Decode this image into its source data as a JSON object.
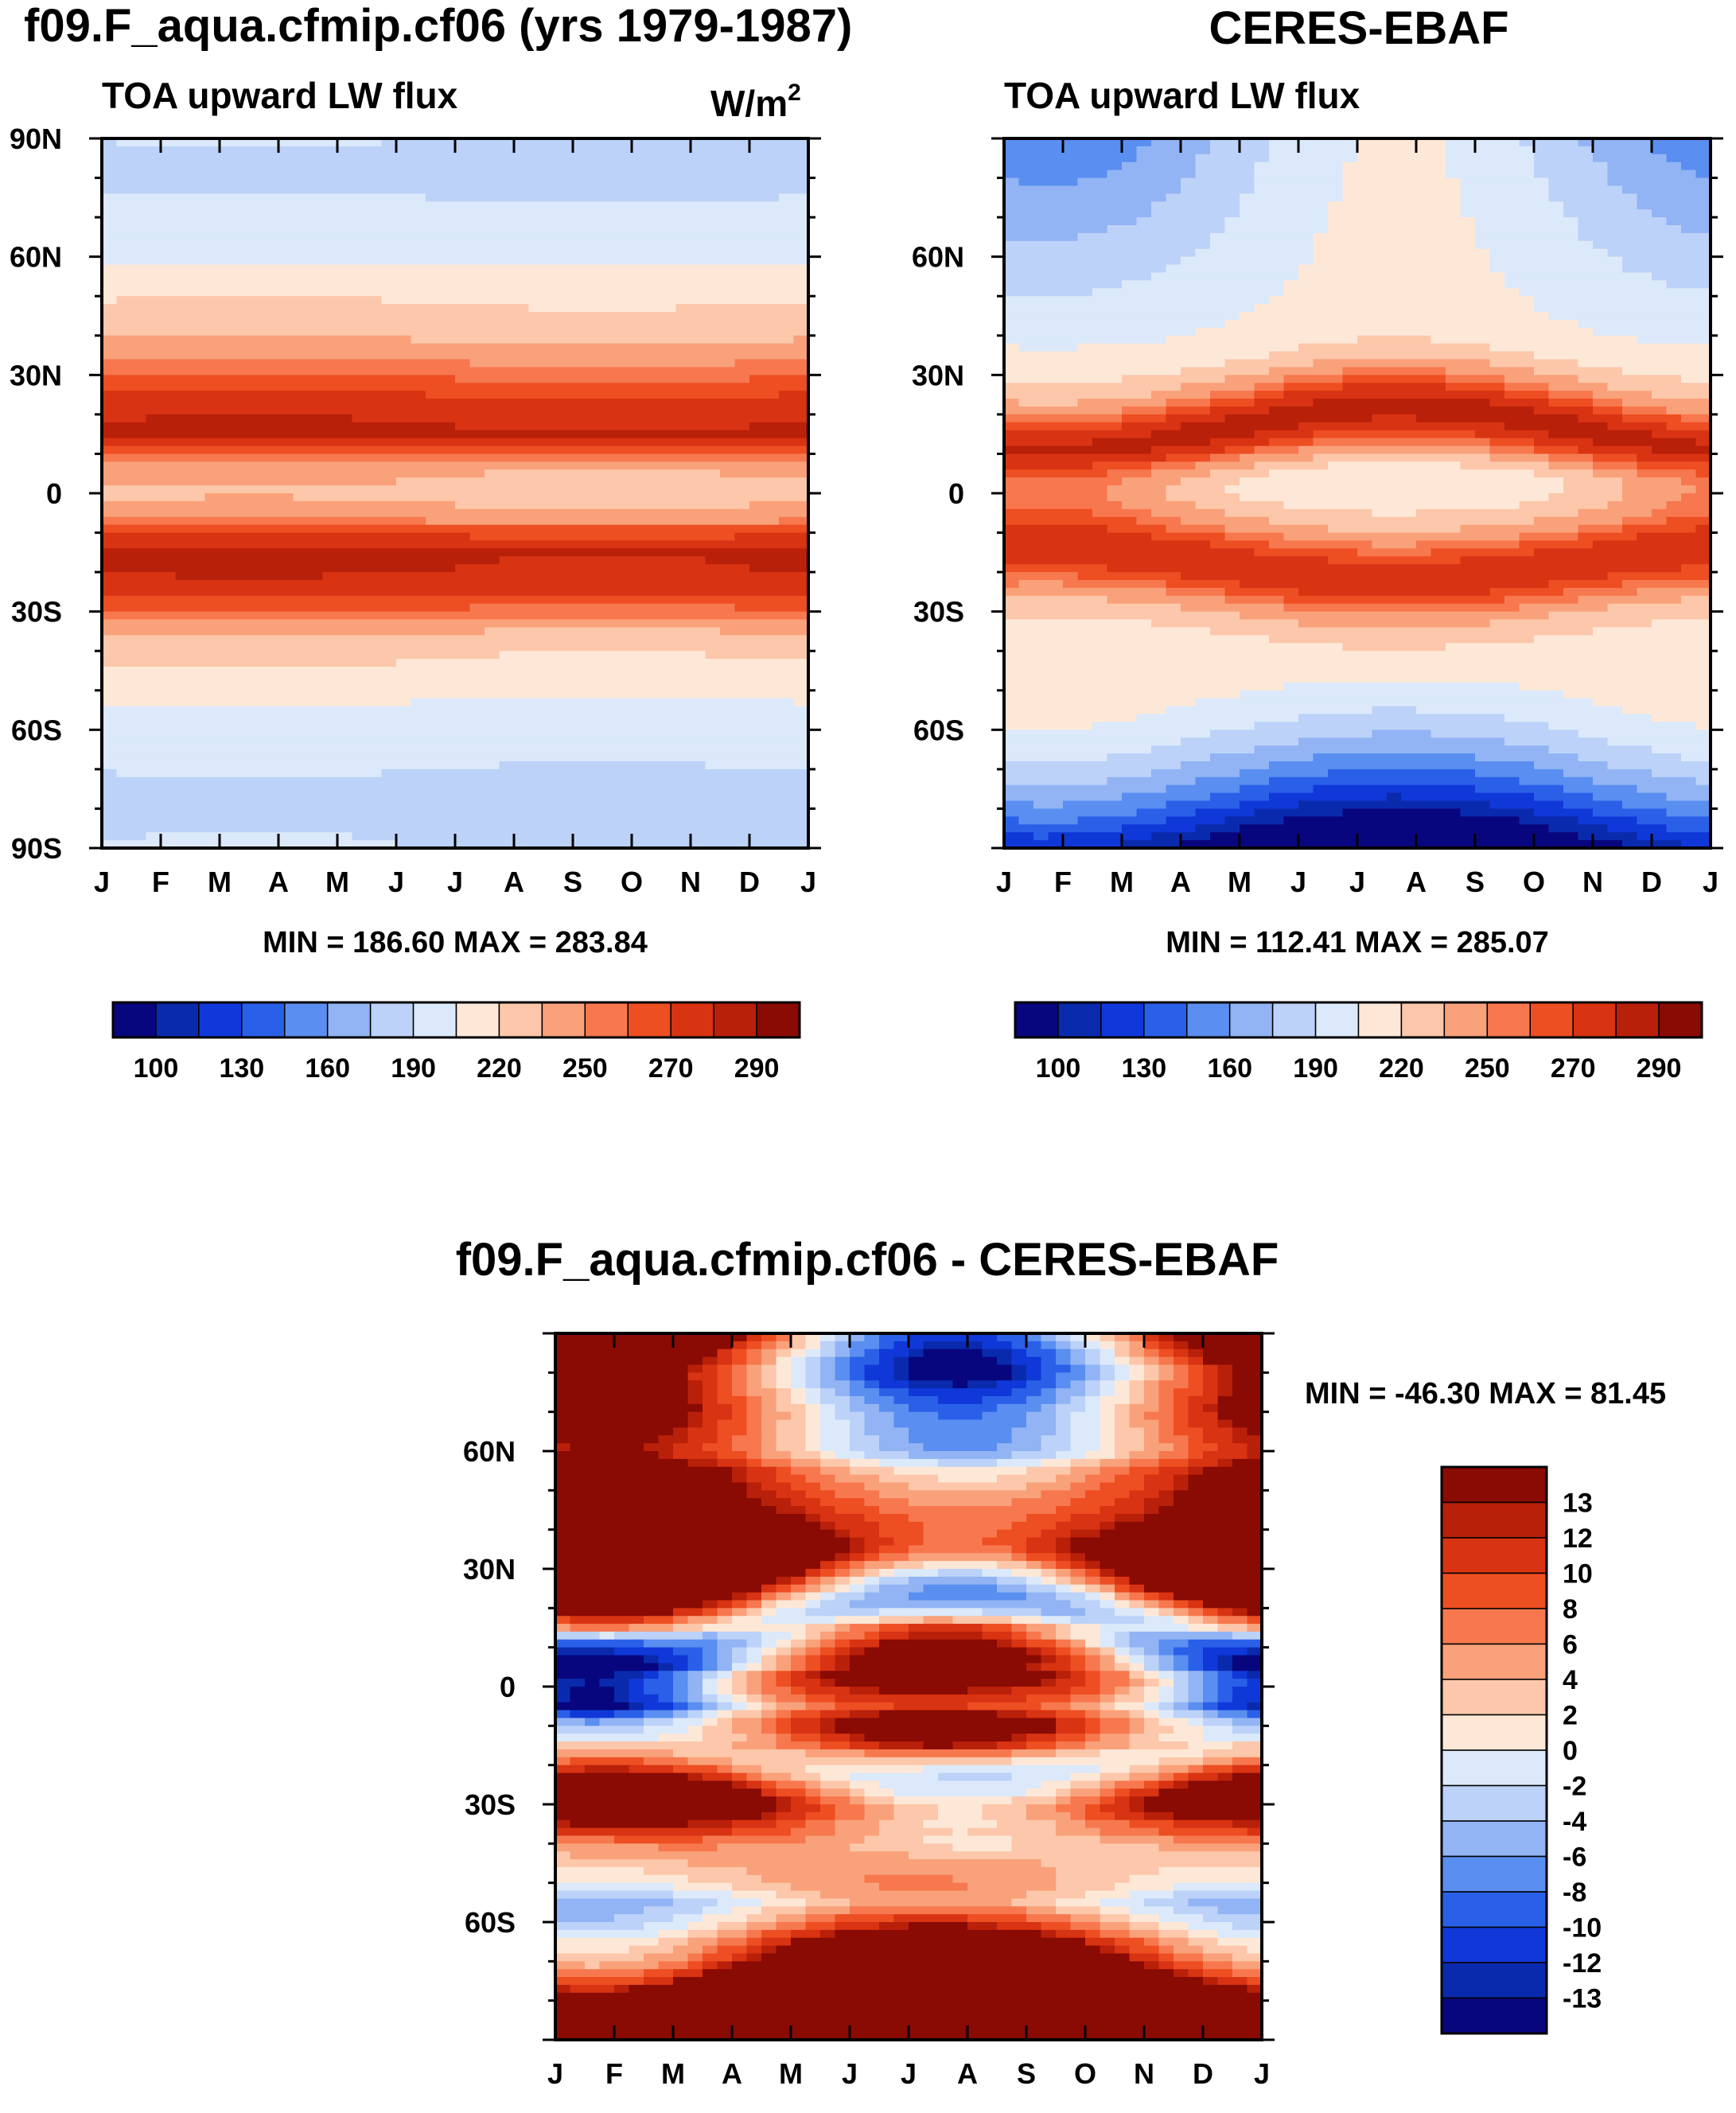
{
  "chart_data": [
    {
      "type": "heatmap",
      "title": "f09.F_aqua.cfmip.cf06 (yrs 1979-1987)",
      "subtitle": "TOA upward LW flux",
      "units": "W/m",
      "units_sup": "2",
      "x_tick_labels": [
        "J",
        "F",
        "M",
        "A",
        "M",
        "J",
        "J",
        "A",
        "S",
        "O",
        "N",
        "D",
        "J"
      ],
      "y_tick_labels": [
        "90N",
        "60N",
        "30N",
        "0",
        "30S",
        "60S",
        "90S"
      ],
      "ylim": [
        -90,
        90
      ],
      "stats": "MIN = 186.60 MAX = 283.84",
      "colorbar": {
        "orientation": "horizontal",
        "labels": [
          "100",
          "130",
          "160",
          "190",
          "220",
          "250",
          "270",
          "290"
        ],
        "colors": [
          "#08067e",
          "#0a2aae",
          "#1038d8",
          "#2a60e8",
          "#5a8ef0",
          "#92b4f4",
          "#bcd2f8",
          "#dbe9fa",
          "#fde8d8",
          "#fcc7aa",
          "#f9a17a",
          "#f7784e",
          "#ed4e22",
          "#d83312",
          "#b8200a",
          "#8a0a04"
        ]
      },
      "profile": {
        "lat": [
          90,
          85,
          80,
          75,
          70,
          65,
          60,
          55,
          50,
          45,
          40,
          35,
          30,
          25,
          20,
          15,
          10,
          5,
          0,
          -5,
          -10,
          -15,
          -20,
          -25,
          -30,
          -35,
          -40,
          -45,
          -50,
          -55,
          -60,
          -65,
          -70,
          -75,
          -80,
          -85,
          -90
        ],
        "value": [
          190,
          186,
          184,
          190,
          196,
          198,
          200,
          212,
          218,
          224,
          232,
          246,
          258,
          270,
          278,
          282,
          262,
          236,
          232,
          238,
          268,
          282,
          280,
          272,
          258,
          236,
          222,
          218,
          212,
          200,
          198,
          196,
          190,
          186,
          184,
          188,
          190
        ]
      }
    },
    {
      "type": "heatmap",
      "title": "CERES-EBAF",
      "subtitle": "TOA upward LW flux",
      "x_tick_labels": [
        "J",
        "F",
        "M",
        "A",
        "M",
        "J",
        "J",
        "A",
        "S",
        "O",
        "N",
        "D",
        "J"
      ],
      "y_tick_labels": [
        "60N",
        "30N",
        "0",
        "30S",
        "60S"
      ],
      "ylim": [
        -90,
        90
      ],
      "stats": "MIN = 112.41 MAX = 285.07",
      "colorbar": {
        "orientation": "horizontal",
        "labels": [
          "100",
          "130",
          "160",
          "190",
          "220",
          "250",
          "270",
          "290"
        ],
        "colors": [
          "#08067e",
          "#0a2aae",
          "#1038d8",
          "#2a60e8",
          "#5a8ef0",
          "#92b4f4",
          "#bcd2f8",
          "#dbe9fa",
          "#fde8d8",
          "#fcc7aa",
          "#f9a17a",
          "#f7784e",
          "#ed4e22",
          "#d83312",
          "#b8200a",
          "#8a0a04"
        ]
      }
    },
    {
      "type": "heatmap",
      "title": "f09.F_aqua.cfmip.cf06 - CERES-EBAF",
      "x_tick_labels": [
        "J",
        "F",
        "M",
        "A",
        "M",
        "J",
        "J",
        "A",
        "S",
        "O",
        "N",
        "D",
        "J"
      ],
      "y_tick_labels": [
        "60N",
        "30N",
        "0",
        "30S",
        "60S"
      ],
      "ylim": [
        -90,
        90
      ],
      "stats": "MIN = -46.30 MAX =  81.45",
      "colorbar": {
        "orientation": "vertical",
        "labels": [
          "13",
          "12",
          "10",
          "8",
          "6",
          "4",
          "2",
          "0",
          "-2",
          "-4",
          "-6",
          "-8",
          "-10",
          "-12",
          "-13"
        ],
        "colors": [
          "#8a0a04",
          "#b8200a",
          "#d83312",
          "#ed4e22",
          "#f7784e",
          "#f9a17a",
          "#fcc7aa",
          "#fde8d8",
          "#dbe9fa",
          "#bcd2f8",
          "#92b4f4",
          "#5a8ef0",
          "#2a60e8",
          "#1038d8",
          "#0a2aae",
          "#08067e"
        ]
      }
    }
  ]
}
